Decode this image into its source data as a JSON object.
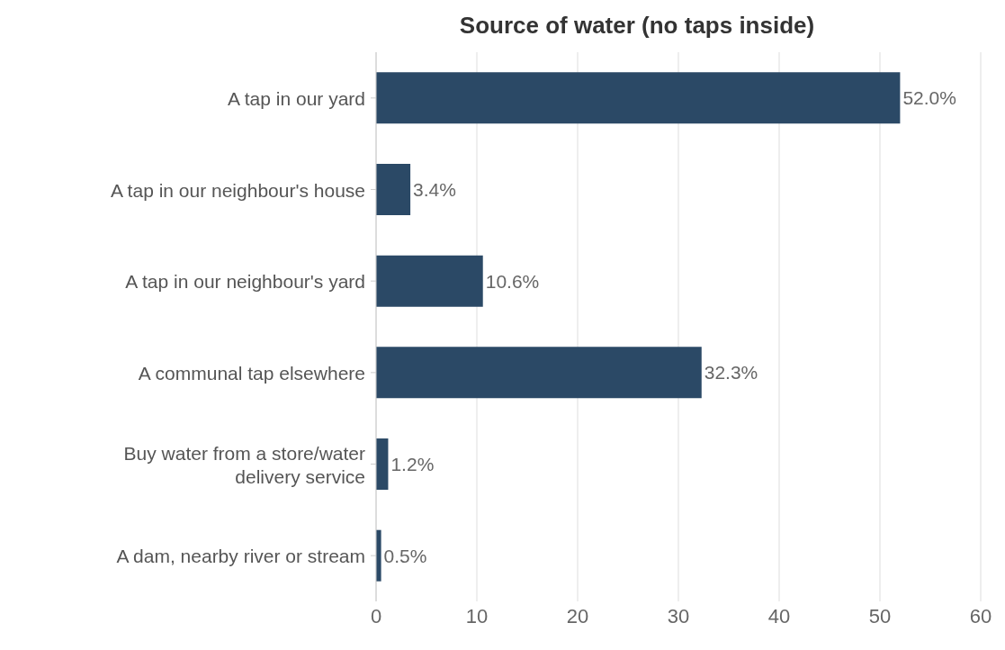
{
  "chart_data": {
    "type": "bar",
    "orientation": "horizontal",
    "title": "Source of water (no taps inside)",
    "categories": [
      "A tap in our yard",
      "A tap in our neighbour's house",
      "A tap in our neighbour's yard",
      "A communal tap elsewhere",
      "Buy water from a store/water delivery service",
      "A dam, nearby river or stream"
    ],
    "values": [
      52.0,
      3.4,
      10.6,
      32.3,
      1.2,
      0.5
    ],
    "value_labels": [
      "52.0%",
      "3.4%",
      "10.6%",
      "32.3%",
      "1.2%",
      "0.5%"
    ],
    "color": "#2b4966",
    "xlim": [
      0,
      60
    ],
    "xticks": [
      0,
      10,
      20,
      30,
      40,
      50,
      60
    ],
    "grid": "x"
  }
}
